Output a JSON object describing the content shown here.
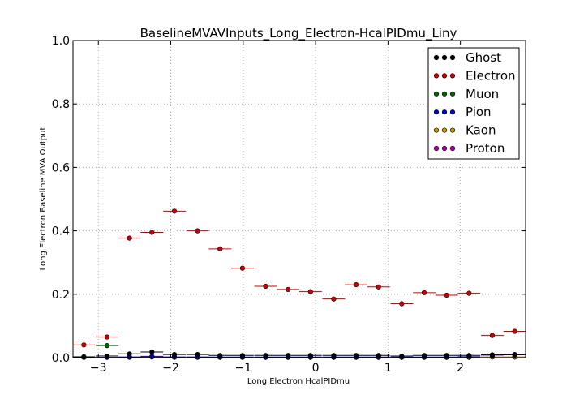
{
  "chart_data": {
    "type": "scatter",
    "title": "BaselineMVAVInputs_Long_Electron-HcalPIDmu_Liny",
    "xlabel": "Long Electron HcalPIDmu",
    "ylabel": "Long Electron Baseline MVA Output",
    "xlim": [
      -3.35,
      2.9
    ],
    "ylim": [
      0.0,
      1.0
    ],
    "x_ticks": [
      -3,
      -2,
      -1,
      0,
      1,
      2
    ],
    "x_tick_labels": [
      "−3",
      "−2",
      "−1",
      "0",
      "1",
      "2"
    ],
    "y_ticks": [
      0.0,
      0.2,
      0.4,
      0.6,
      0.8,
      1.0
    ],
    "y_tick_labels": [
      "0.0",
      "0.2",
      "0.4",
      "0.6",
      "0.8",
      "1.0"
    ],
    "grid": true,
    "legend_position": "top-right",
    "bin_halfwidth": 0.156,
    "series": [
      {
        "name": "Ghost",
        "color": "#000000",
        "x": [
          -3.2,
          -2.88,
          -2.57,
          -2.26,
          -1.95,
          -1.63,
          -1.32,
          -1.01,
          -0.69,
          -0.38,
          -0.07,
          0.25,
          0.56,
          0.87,
          1.19,
          1.5,
          1.81,
          2.12,
          2.44,
          2.75
        ],
        "y": [
          0.002,
          0.005,
          0.012,
          0.018,
          0.01,
          0.01,
          0.007,
          0.007,
          0.007,
          0.007,
          0.007,
          0.007,
          0.007,
          0.007,
          0.005,
          0.007,
          0.007,
          0.007,
          0.009,
          0.009
        ]
      },
      {
        "name": "Electron",
        "color": "#cc0000",
        "x": [
          -3.2,
          -2.88,
          -2.57,
          -2.26,
          -1.95,
          -1.63,
          -1.32,
          -1.01,
          -0.69,
          -0.38,
          -0.07,
          0.25,
          0.56,
          0.87,
          1.19,
          1.5,
          1.81,
          2.12,
          2.44,
          2.75
        ],
        "y": [
          0.04,
          0.065,
          0.377,
          0.395,
          0.462,
          0.4,
          0.343,
          0.282,
          0.225,
          0.215,
          0.208,
          0.185,
          0.23,
          0.223,
          0.17,
          0.205,
          0.197,
          0.203,
          0.07,
          0.083
        ],
        "y_err": [
          0.004,
          0.005,
          0.004,
          0.004,
          0.004,
          0.004,
          0.004,
          0.004,
          0.004,
          0.004,
          0.004,
          0.004,
          0.004,
          0.004,
          0.004,
          0.004,
          0.004,
          0.004,
          0.004,
          0.007
        ]
      },
      {
        "name": "Muon",
        "color": "#006600",
        "x": [
          -3.2,
          -2.88
        ],
        "y": [
          0.003,
          0.038
        ]
      },
      {
        "name": "Pion",
        "color": "#0000cc",
        "x": [
          -3.2,
          -2.88,
          -2.57,
          -2.26,
          -1.95,
          -1.63,
          -1.32,
          -1.01,
          -0.69,
          -0.38,
          -0.07,
          0.25,
          0.56,
          0.87,
          1.19,
          1.5,
          1.81,
          2.12,
          2.44,
          2.75
        ],
        "y": [
          0.001,
          0.001,
          0.002,
          0.003,
          0.002,
          0.002,
          0.002,
          0.002,
          0.002,
          0.002,
          0.002,
          0.002,
          0.002,
          0.002,
          0.002,
          0.002,
          0.002,
          0.003,
          0.008,
          0.01
        ]
      },
      {
        "name": "Kaon",
        "color": "#cc9900",
        "x": [
          -3.2,
          -2.88,
          -2.57,
          -2.26,
          -1.95,
          -1.63,
          -1.32,
          -1.01,
          -0.69,
          -0.38,
          -0.07,
          0.25,
          0.56,
          0.87,
          1.19,
          1.5,
          1.81,
          2.12,
          2.44,
          2.75
        ],
        "y": [
          0.001,
          0.001,
          0.001,
          0.002,
          0.001,
          0.001,
          0.001,
          0.001,
          0.001,
          0.001,
          0.001,
          0.001,
          0.001,
          0.001,
          0.001,
          0.001,
          0.001,
          0.001,
          0.002,
          0.002
        ]
      },
      {
        "name": "Proton",
        "color": "#aa00aa",
        "x": [
          -3.2,
          -2.88,
          -2.57,
          -2.26,
          -1.95,
          -1.63,
          -1.32,
          -1.01,
          -0.69,
          -0.38,
          -0.07,
          0.25,
          0.56,
          0.87,
          1.19,
          1.5,
          1.81,
          2.12,
          2.44,
          2.75
        ],
        "y": [
          0.001,
          0.001,
          0.002,
          0.004,
          0.002,
          0.002,
          0.001,
          0.001,
          0.001,
          0.001,
          0.001,
          0.001,
          0.001,
          0.001,
          0.001,
          0.001,
          0.001,
          0.001,
          0.002,
          0.002
        ]
      }
    ]
  }
}
